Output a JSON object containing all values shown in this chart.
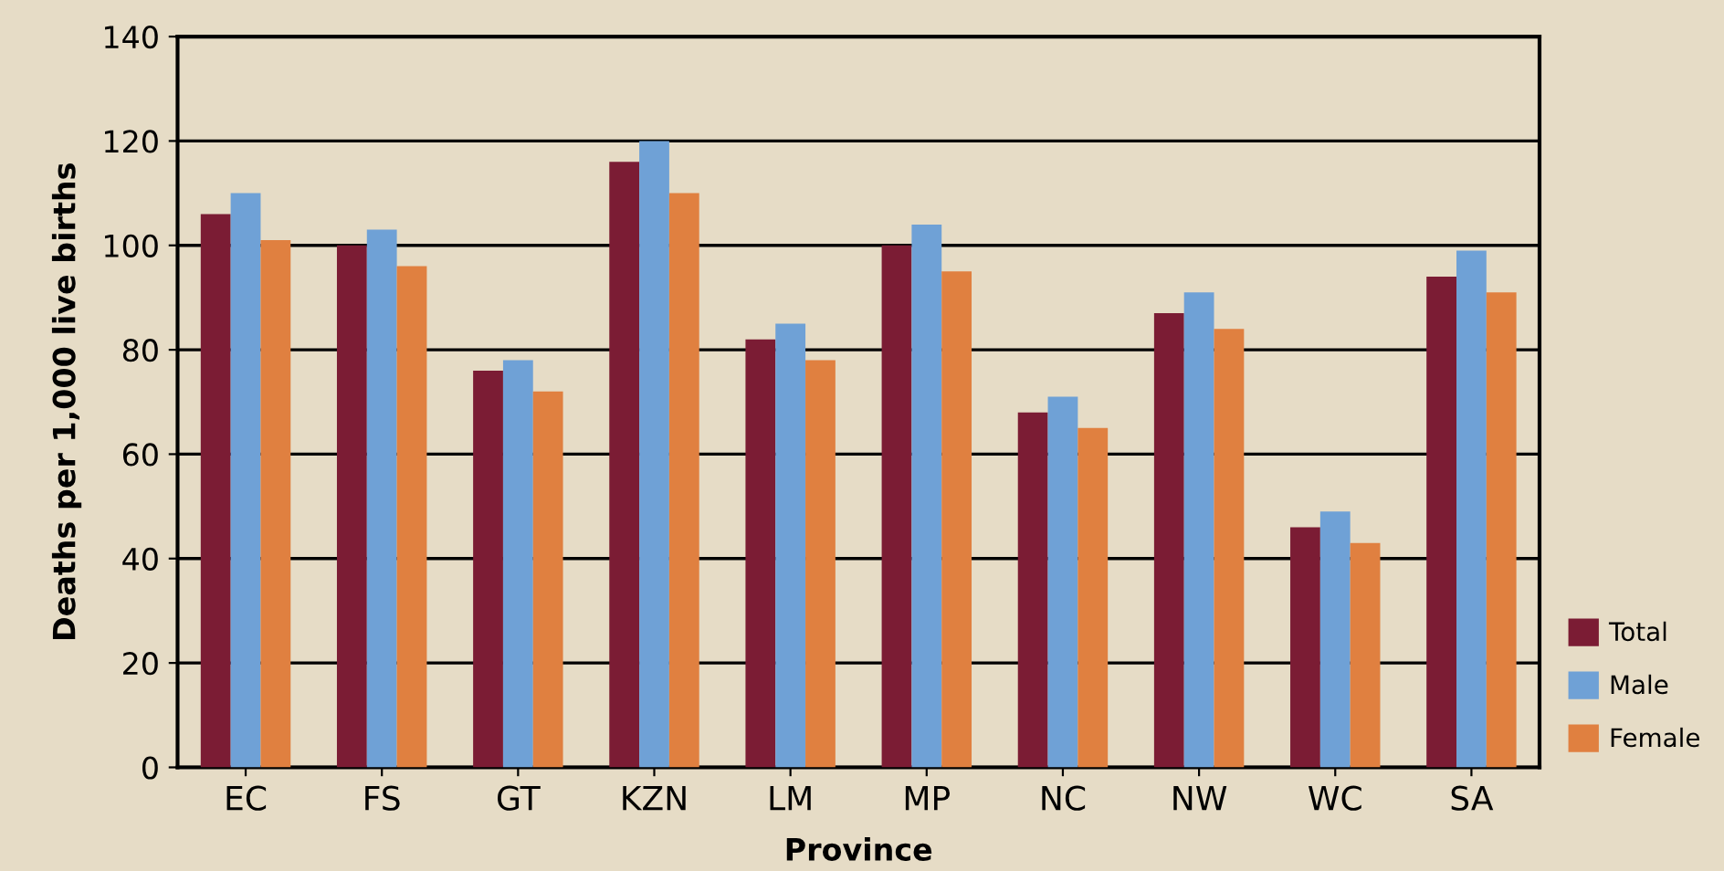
{
  "chart_data": {
    "type": "bar",
    "xlabel": "Province",
    "ylabel": "Deaths per 1,000 live births",
    "categories": [
      "EC",
      "FS",
      "GT",
      "KZN",
      "LM",
      "MP",
      "NC",
      "NW",
      "WC",
      "SA"
    ],
    "series": [
      {
        "name": "Total",
        "color": "#7b1c34",
        "values": [
          106,
          100,
          76,
          116,
          82,
          100,
          68,
          87,
          46,
          94
        ]
      },
      {
        "name": "Male",
        "color": "#6fa1d6",
        "values": [
          110,
          103,
          78,
          120,
          85,
          104,
          71,
          91,
          49,
          99
        ]
      },
      {
        "name": "Female",
        "color": "#e08040",
        "values": [
          101,
          96,
          72,
          110,
          78,
          95,
          65,
          84,
          43,
          91
        ]
      }
    ],
    "ylim": [
      0,
      140
    ],
    "yticks": [
      0,
      20,
      40,
      60,
      80,
      100,
      120,
      140
    ],
    "grid": "y",
    "legend": "bottom right"
  }
}
